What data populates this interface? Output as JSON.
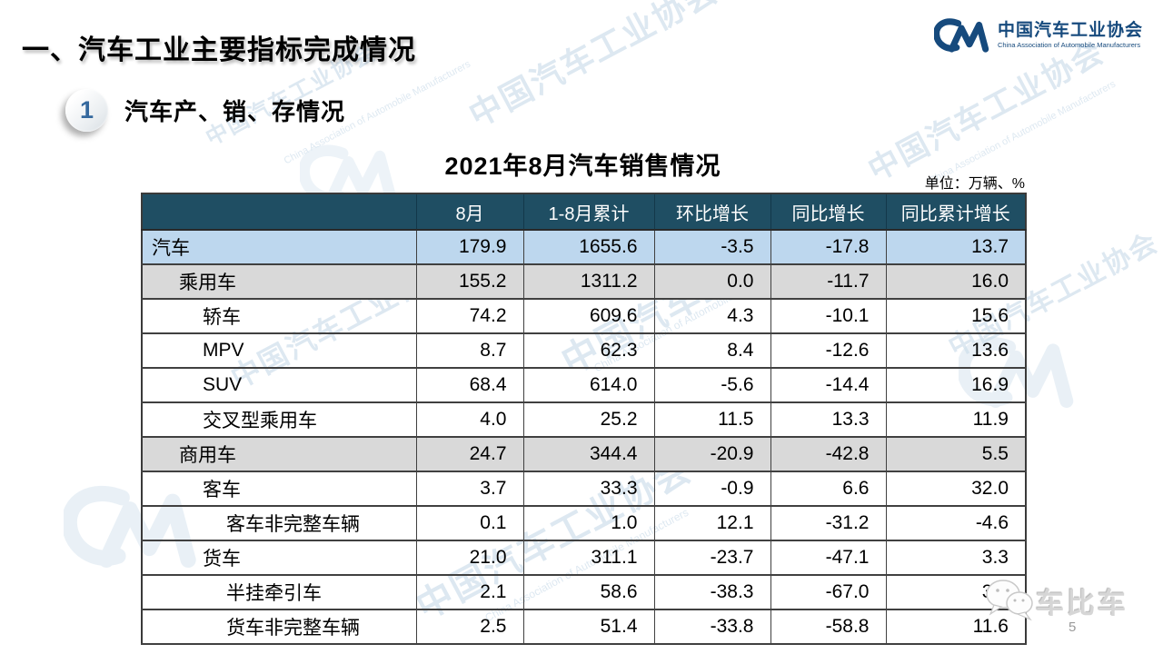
{
  "page": {
    "section_title": "一、汽车工业主要指标完成情况",
    "badge_number": "1",
    "subsection_title": "汽车产、销、存情况",
    "page_number": "5"
  },
  "logo": {
    "mark": "CM",
    "name_cn": "中国汽车工业协会",
    "name_en": "China Association of Automobile Manufacturers",
    "color": "#164A7D"
  },
  "watermark": {
    "text": "中国汽车工业协会",
    "subtext": "China Association of Automobile Manufacturers",
    "brand_bottom_right": "车比车"
  },
  "table": {
    "title": "2021年8月汽车销售情况",
    "unit_label": "单位：万辆、%",
    "header_bg": "#1F4E63",
    "highlight_blue": "#BDD7EE",
    "highlight_gray": "#D9D9D9",
    "columns": [
      "",
      "8月",
      "1-8月累计",
      "环比增长",
      "同比增长",
      "同比累计增长"
    ],
    "rows": [
      {
        "label": "汽车",
        "indent": 0,
        "bg": "#BDD7EE",
        "values": [
          "179.9",
          "1655.6",
          "-3.5",
          "-17.8",
          "13.7"
        ]
      },
      {
        "label": "乘用车",
        "indent": 1,
        "bg": "#D9D9D9",
        "values": [
          "155.2",
          "1311.2",
          "0.0",
          "-11.7",
          "16.0"
        ]
      },
      {
        "label": "轿车",
        "indent": 2,
        "bg": "transparent",
        "values": [
          "74.2",
          "609.6",
          "4.3",
          "-10.1",
          "15.6"
        ]
      },
      {
        "label": "MPV",
        "indent": 2,
        "bg": "transparent",
        "values": [
          "8.7",
          "62.3",
          "8.4",
          "-12.6",
          "13.6"
        ]
      },
      {
        "label": "SUV",
        "indent": 2,
        "bg": "transparent",
        "values": [
          "68.4",
          "614.0",
          "-5.6",
          "-14.4",
          "16.9"
        ]
      },
      {
        "label": "交叉型乘用车",
        "indent": 2,
        "bg": "transparent",
        "values": [
          "4.0",
          "25.2",
          "11.5",
          "13.3",
          "11.9"
        ]
      },
      {
        "label": "商用车",
        "indent": 1,
        "bg": "#D9D9D9",
        "values": [
          "24.7",
          "344.4",
          "-20.9",
          "-42.8",
          "5.5"
        ]
      },
      {
        "label": "客车",
        "indent": 2,
        "bg": "transparent",
        "values": [
          "3.7",
          "33.3",
          "-0.9",
          "6.6",
          "32.0"
        ]
      },
      {
        "label": "客车非完整车辆",
        "indent": 3,
        "bg": "transparent",
        "values": [
          "0.1",
          "1.0",
          "12.1",
          "-31.2",
          "-4.6"
        ]
      },
      {
        "label": "货车",
        "indent": 2,
        "bg": "transparent",
        "values": [
          "21.0",
          "311.1",
          "-23.7",
          "-47.1",
          "3.3"
        ]
      },
      {
        "label": "半挂牵引车",
        "indent": 3,
        "bg": "transparent",
        "values": [
          "2.1",
          "58.6",
          "-38.3",
          "-67.0",
          "3.6"
        ]
      },
      {
        "label": "货车非完整车辆",
        "indent": 3,
        "bg": "transparent",
        "values": [
          "2.5",
          "51.4",
          "-33.8",
          "-58.8",
          "11.6"
        ]
      }
    ]
  }
}
